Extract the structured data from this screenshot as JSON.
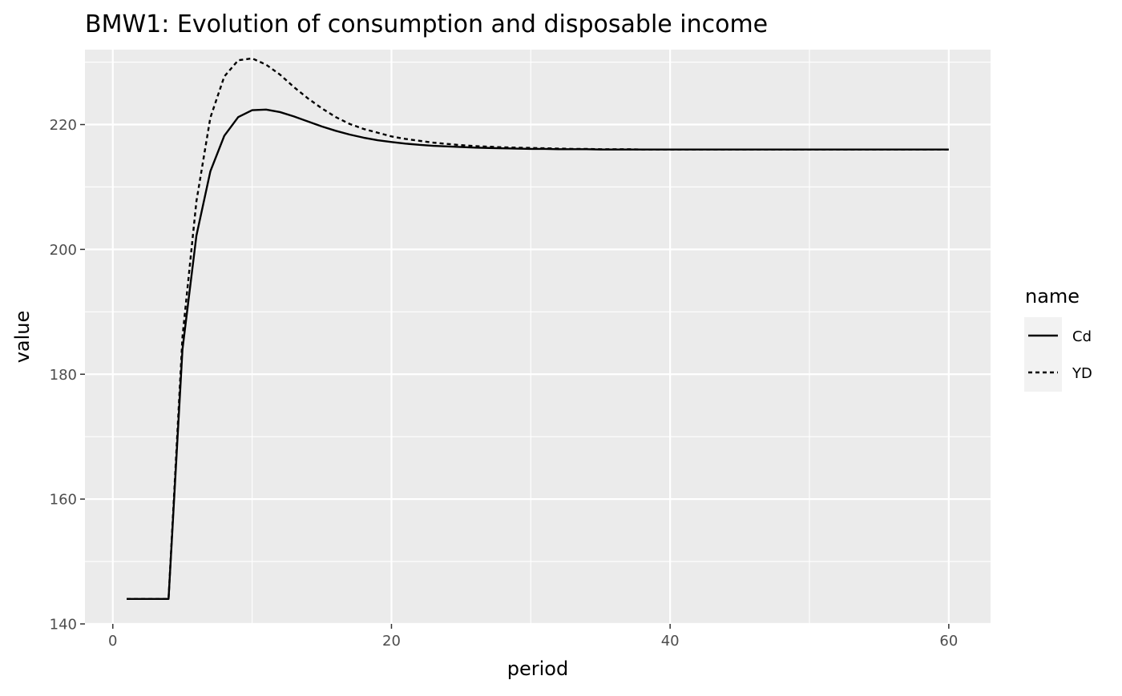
{
  "chart_data": {
    "type": "line",
    "title": "BMW1: Evolution of consumption and disposable income",
    "xlabel": "period",
    "ylabel": "value",
    "xlim": [
      -2,
      63
    ],
    "ylim": [
      140,
      232
    ],
    "xticks": [
      0,
      20,
      40,
      60
    ],
    "xtick_labels": [
      "0",
      "20",
      "40",
      "60"
    ],
    "yticks": [
      140,
      160,
      180,
      200,
      220
    ],
    "ytick_labels": [
      "140",
      "160",
      "180",
      "200",
      "220"
    ],
    "grid": true,
    "legend": {
      "title": "name",
      "placement": "right",
      "entries": [
        {
          "label": "Cd",
          "linetype": "solid"
        },
        {
          "label": "YD",
          "linetype": "dashed"
        }
      ]
    },
    "x": [
      1,
      2,
      3,
      4,
      5,
      6,
      7,
      8,
      9,
      10,
      11,
      12,
      13,
      14,
      15,
      16,
      17,
      18,
      19,
      20,
      21,
      22,
      23,
      24,
      25,
      26,
      27,
      28,
      29,
      30,
      31,
      32,
      33,
      34,
      35,
      36,
      37,
      38,
      39,
      40,
      41,
      42,
      43,
      44,
      45,
      46,
      47,
      48,
      49,
      50,
      51,
      52,
      53,
      54,
      55,
      56,
      57,
      58,
      59,
      60
    ],
    "series": [
      {
        "name": "Cd",
        "linetype": "solid",
        "color": "#000000",
        "values": [
          144,
          144,
          144,
          144,
          184,
          202.2,
          212.5,
          218.2,
          221.2,
          222.3,
          222.4,
          222,
          221.3,
          220.5,
          219.7,
          219,
          218.4,
          217.9,
          217.5,
          217.2,
          216.95,
          216.75,
          216.6,
          216.5,
          216.4,
          216.3,
          216.25,
          216.2,
          216.15,
          216.1,
          216.1,
          216.05,
          216.05,
          216.05,
          216,
          216,
          216,
          216,
          216,
          216,
          216,
          216,
          216,
          216,
          216,
          216,
          216,
          216,
          216,
          216,
          216,
          216,
          216,
          216,
          216,
          216,
          216,
          216,
          216,
          216
        ]
      },
      {
        "name": "YD",
        "linetype": "dashed",
        "color": "#000000",
        "values": [
          144,
          144,
          144,
          144,
          186,
          207.7,
          221.1,
          227.7,
          230.3,
          230.6,
          229.6,
          228,
          226,
          224.2,
          222.6,
          221.2,
          220.1,
          219.3,
          218.7,
          218.1,
          217.7,
          217.4,
          217.1,
          216.9,
          216.7,
          216.55,
          216.45,
          216.35,
          216.3,
          216.25,
          216.2,
          216.15,
          216.1,
          216.1,
          216.05,
          216.05,
          216.05,
          216,
          216,
          216,
          216,
          216,
          216,
          216,
          216,
          216,
          216,
          216,
          216,
          216,
          216,
          216,
          216,
          216,
          216,
          216,
          216,
          216,
          216,
          216
        ]
      }
    ]
  }
}
